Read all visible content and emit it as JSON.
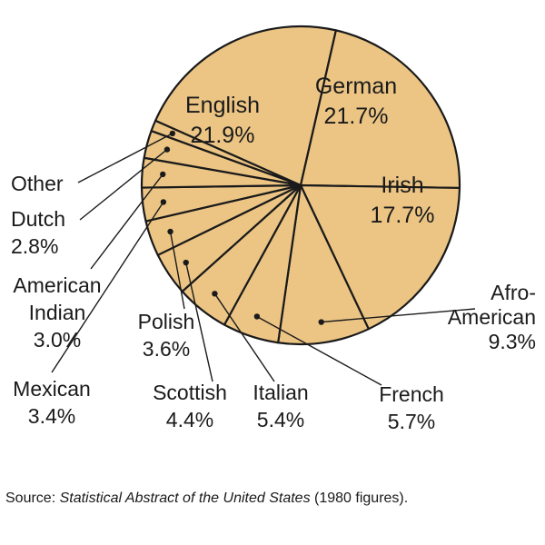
{
  "chart_data": {
    "type": "pie",
    "slices": [
      {
        "name": "English",
        "value": 21.9,
        "label": "21.9%"
      },
      {
        "name": "German",
        "value": 21.7,
        "label": "21.7%"
      },
      {
        "name": "Irish",
        "value": 17.7,
        "label": "17.7%"
      },
      {
        "name": "Afro-American",
        "value": 9.3,
        "label": "9.3%"
      },
      {
        "name": "French",
        "value": 5.7,
        "label": "5.7%"
      },
      {
        "name": "Italian",
        "value": 5.4,
        "label": "5.4%"
      },
      {
        "name": "Scottish",
        "value": 4.4,
        "label": "4.4%"
      },
      {
        "name": "Polish",
        "value": 3.6,
        "label": "3.6%"
      },
      {
        "name": "Mexican",
        "value": 3.4,
        "label": "3.4%"
      },
      {
        "name": "American Indian",
        "value": 3.0,
        "label": "3.0%"
      },
      {
        "name": "Dutch",
        "value": 2.8,
        "label": "2.8%"
      },
      {
        "name": "Other",
        "value": 1.1,
        "label": ""
      }
    ],
    "colors": {
      "fill": "#ecc585",
      "stroke": "#1a1a1a"
    }
  },
  "source": {
    "prefix": "Source: ",
    "title": "Statistical Abstract of the United States",
    "suffix": " (1980 figures)."
  }
}
